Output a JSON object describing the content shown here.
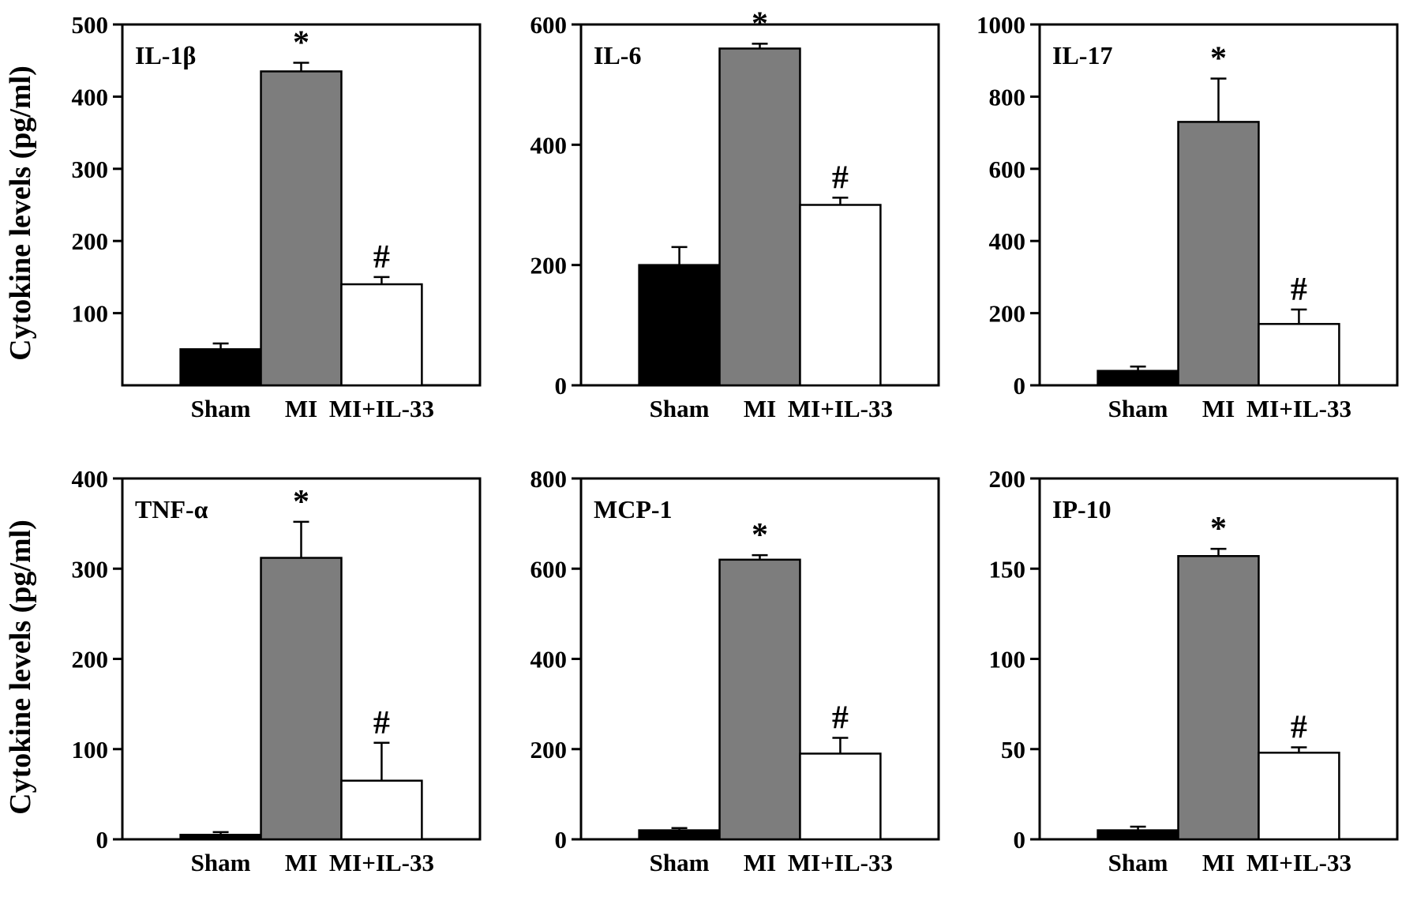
{
  "chart_data": {
    "type": "bar",
    "ylabel": "Cytokine levels (pg/ml)",
    "categories": [
      "Sham",
      "MI",
      "MI+IL-33"
    ],
    "bar_colors": [
      "#000000",
      "#7d7d7d",
      "#ffffff"
    ],
    "legend": "none",
    "grid": false,
    "charts": [
      {
        "title": "IL-1β",
        "ylim": [
          0,
          500
        ],
        "yticks": [
          100,
          200,
          300,
          400,
          500
        ],
        "values": [
          50,
          435,
          140
        ],
        "errors": [
          8,
          12,
          10
        ],
        "markers": [
          "",
          "*",
          "#"
        ]
      },
      {
        "title": "IL-6",
        "ylim": [
          0,
          600
        ],
        "yticks": [
          0,
          200,
          400,
          600
        ],
        "values": [
          200,
          560,
          300
        ],
        "errors": [
          30,
          8,
          12
        ],
        "markers": [
          "",
          "*",
          "#"
        ]
      },
      {
        "title": "IL-17",
        "ylim": [
          0,
          1000
        ],
        "yticks": [
          0,
          200,
          400,
          600,
          800,
          1000
        ],
        "values": [
          40,
          730,
          170
        ],
        "errors": [
          12,
          120,
          40
        ],
        "markers": [
          "",
          "*",
          "#"
        ]
      },
      {
        "title": "TNF-α",
        "ylim": [
          0,
          400
        ],
        "yticks": [
          0,
          100,
          200,
          300,
          400
        ],
        "values": [
          5,
          312,
          65
        ],
        "errors": [
          3,
          40,
          42
        ],
        "markers": [
          "",
          "*",
          "#"
        ]
      },
      {
        "title": "MCP-1",
        "ylim": [
          0,
          800
        ],
        "yticks": [
          0,
          200,
          400,
          600,
          800
        ],
        "values": [
          20,
          620,
          190
        ],
        "errors": [
          5,
          10,
          35
        ],
        "markers": [
          "",
          "*",
          "#"
        ]
      },
      {
        "title": "IP-10",
        "ylim": [
          0,
          200
        ],
        "yticks": [
          0,
          50,
          100,
          150,
          200
        ],
        "values": [
          5,
          157,
          48
        ],
        "errors": [
          2,
          4,
          3
        ],
        "markers": [
          "",
          "*",
          "#"
        ]
      }
    ]
  }
}
